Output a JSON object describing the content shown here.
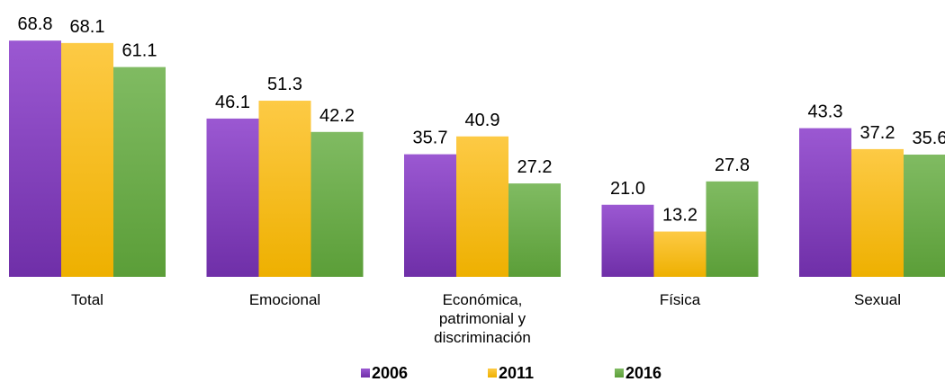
{
  "chart_data": {
    "type": "bar",
    "title": "",
    "xlabel": "",
    "ylabel": "",
    "ylim": [
      0,
      75
    ],
    "grid": false,
    "legend_position": "bottom",
    "categories": [
      [
        "Total"
      ],
      [
        "Emocional"
      ],
      [
        "Económica,",
        "patrimonial y",
        "discriminación"
      ],
      [
        "Física"
      ],
      [
        "Sexual"
      ]
    ],
    "series": [
      {
        "name": "2006",
        "color": "#8b46c2",
        "values": [
          68.8,
          46.1,
          35.7,
          21.0,
          43.3
        ],
        "labels": [
          "68.8",
          "46.1",
          "35.7",
          "21.0",
          "43.3"
        ]
      },
      {
        "name": "2011",
        "color": "#f8c31a",
        "values": [
          68.1,
          51.3,
          40.9,
          13.2,
          37.2
        ],
        "labels": [
          "68.1",
          "51.3",
          "40.9",
          "13.2",
          "37.2"
        ]
      },
      {
        "name": "2016",
        "color": "#6eac4a",
        "values": [
          61.1,
          42.2,
          27.2,
          27.8,
          35.6
        ],
        "labels": [
          "61.1",
          "42.2",
          "27.2",
          "27.8",
          "35.6"
        ]
      }
    ]
  }
}
